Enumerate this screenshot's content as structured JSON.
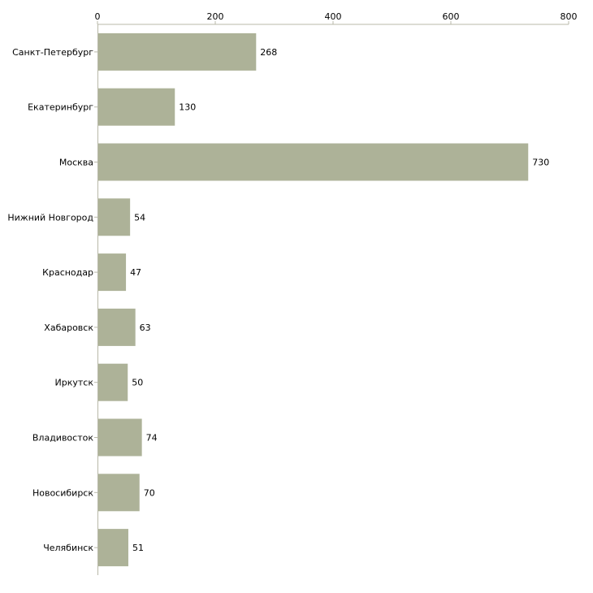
{
  "chart_data": {
    "type": "bar",
    "orientation": "horizontal",
    "title": "",
    "xlabel": "",
    "ylabel": "",
    "xlim": [
      0,
      800
    ],
    "xticks": [
      0,
      200,
      400,
      600,
      800
    ],
    "tick_labels": [
      "0",
      "200",
      "400",
      "600",
      "800"
    ],
    "categories": [
      "Санкт-Петербург",
      "Екатеринбург",
      "Москва",
      "Нижний Новгород",
      "Краснодар",
      "Хабаровск",
      "Иркутск",
      "Владивосток",
      "Новосибирск",
      "Челябинск"
    ],
    "values": [
      268,
      130,
      730,
      54,
      47,
      63,
      50,
      74,
      70,
      51
    ],
    "value_labels": [
      "268",
      "130",
      "730",
      "54",
      "47",
      "63",
      "50",
      "74",
      "70",
      "51"
    ],
    "bar_color": "#adb298",
    "axis_color": "#b8b8a8",
    "grid": false,
    "legend": "none"
  }
}
